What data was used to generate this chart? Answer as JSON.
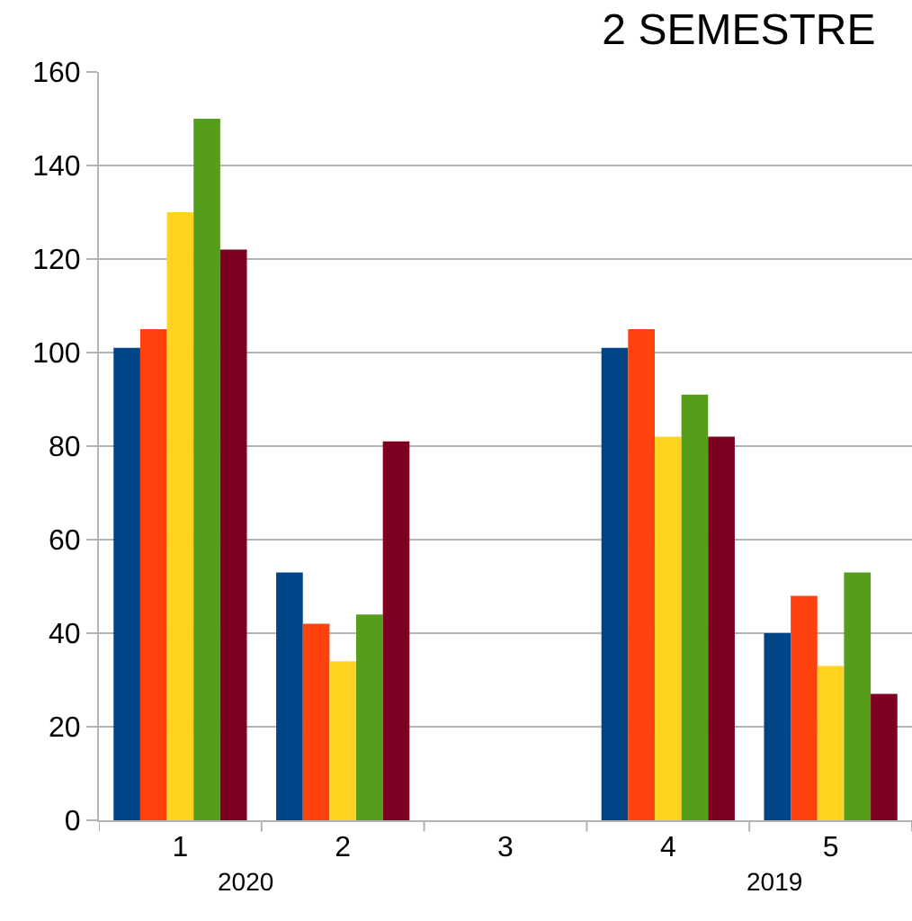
{
  "chart_data": {
    "type": "bar",
    "title": "2 SEMESTRE",
    "categories": [
      "1",
      "2",
      "3",
      "4",
      "5"
    ],
    "series": [
      {
        "color": "#004586",
        "values": [
          101,
          53,
          null,
          101,
          40
        ]
      },
      {
        "color": "#ff420e",
        "values": [
          105,
          42,
          null,
          105,
          48
        ]
      },
      {
        "color": "#ffd320",
        "values": [
          130,
          34,
          null,
          82,
          33
        ]
      },
      {
        "color": "#579d1c",
        "values": [
          150,
          44,
          null,
          91,
          53
        ]
      },
      {
        "color": "#7e0021",
        "values": [
          122,
          81,
          null,
          82,
          27
        ]
      }
    ],
    "ylim": [
      0,
      160
    ],
    "yticks": [
      0,
      20,
      40,
      60,
      80,
      100,
      120,
      140,
      160
    ],
    "grid": "y",
    "annotations": [
      "2020",
      "2019"
    ]
  }
}
